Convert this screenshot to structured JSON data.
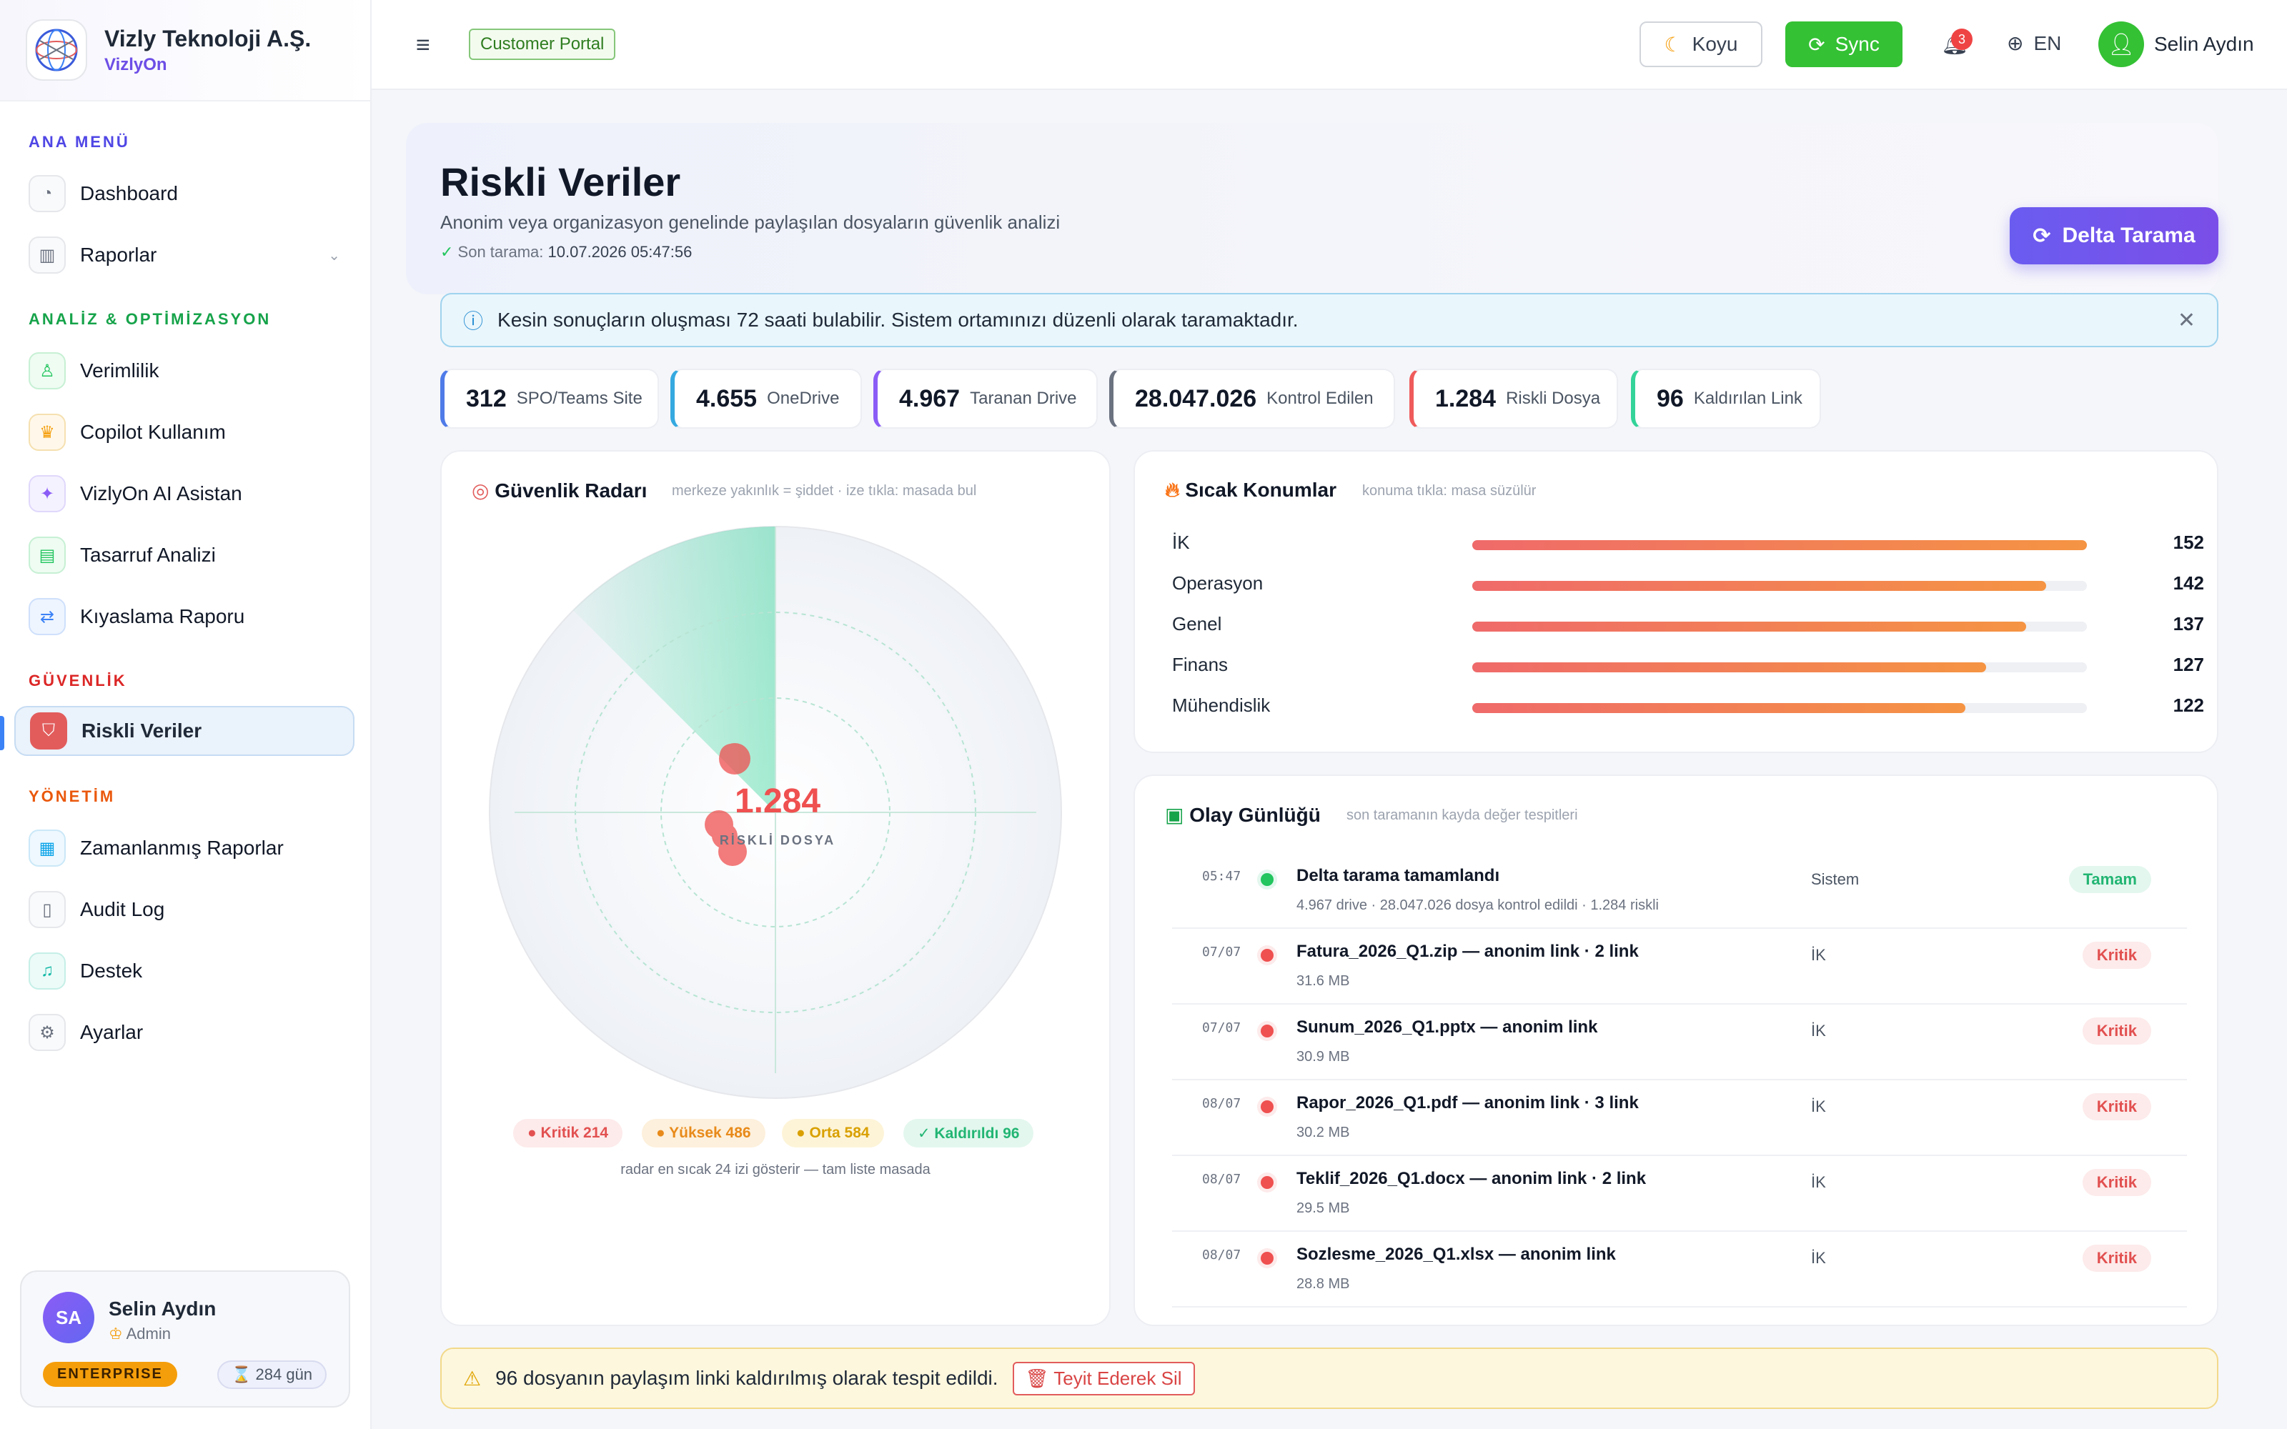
{
  "brand": {
    "name": "Vizly Teknoloji A.Ş.",
    "product": "VizlyOn"
  },
  "sidebar": {
    "sections": [
      "ANA MENÜ",
      "ANALİZ & OPTİMİZASYON",
      "GÜVENLİK",
      "YÖNETİM"
    ],
    "items": [
      {
        "label": "Dashboard",
        "icon": "dashboard-icon"
      },
      {
        "label": "Raporlar",
        "icon": "chart-icon"
      },
      {
        "label": "Verimlilik",
        "icon": "efficiency-icon"
      },
      {
        "label": "Copilot Kullanım",
        "icon": "copilot-icon"
      },
      {
        "label": "VizlyOn AI Asistan",
        "icon": "sparkle-icon"
      },
      {
        "label": "Tasarruf Analizi",
        "icon": "savings-icon"
      },
      {
        "label": "Kıyaslama Raporu",
        "icon": "compare-icon"
      },
      {
        "label": "Riskli Veriler",
        "icon": "shield-icon"
      },
      {
        "label": "Zamanlanmış Raporlar",
        "icon": "calendar-icon"
      },
      {
        "label": "Audit Log",
        "icon": "document-icon"
      },
      {
        "label": "Destek",
        "icon": "headset-icon"
      },
      {
        "label": "Ayarlar",
        "icon": "gear-icon"
      }
    ]
  },
  "user_card": {
    "initials": "SA",
    "name": "Selin Aydın",
    "role": "Admin",
    "plan": "ENTERPRISE",
    "days": "284 gün"
  },
  "topbar": {
    "portal": "Customer Portal",
    "theme": "Koyu",
    "sync": "Sync",
    "notifications": "3",
    "lang": "EN",
    "user": "Selin Aydın"
  },
  "page": {
    "title": "Riskli Veriler",
    "subtitle": "Anonim veya organizasyon genelinde paylaşılan dosyaların güvenlik analizi",
    "last_scan_label": "Son tarama:",
    "last_scan_value": "10.07.2026 05:47:56",
    "action": "Delta Tarama"
  },
  "info": "Kesin sonuçların oluşması 72 saati bulabilir. Sistem ortamınızı düzenli olarak taramaktadır.",
  "stats": [
    {
      "value": "312",
      "label": "SPO/Teams Site",
      "color": "#4f7be8"
    },
    {
      "value": "4.655",
      "label": "OneDrive",
      "color": "#35a9e0"
    },
    {
      "value": "4.967",
      "label": "Taranan Drive",
      "color": "#8b5cf6"
    },
    {
      "value": "28.047.026",
      "label": "Kontrol Edilen",
      "color": "#6b7280"
    },
    {
      "value": "1.284",
      "label": "Riskli Dosya",
      "color": "#ef5b5b"
    },
    {
      "value": "96",
      "label": "Kaldırılan Link",
      "color": "#34d399"
    }
  ],
  "radar": {
    "title": "Güvenlik Radarı",
    "hint": "merkeze yakınlık = şiddet · ize tıkla: masada bul",
    "center_value": "1.284",
    "center_label": "RİSKLİ DOSYA",
    "footer": "radar en sıcak 24 izi gösterir — tam liste masada"
  },
  "severity": [
    {
      "label": "● Kritik 214",
      "bg": "#fdeaea",
      "fg": "#e25050"
    },
    {
      "label": "● Yüksek 486",
      "bg": "#fdf0dc",
      "fg": "#e88a1a"
    },
    {
      "label": "● Orta 584",
      "bg": "#fdf4d8",
      "fg": "#d9a000"
    },
    {
      "label": "✓ Kaldırıldı 96",
      "bg": "#e3f7ee",
      "fg": "#22b573"
    }
  ],
  "hotspots": {
    "title": "Sıcak Konumlar",
    "hint": "konuma tıkla: masa süzülür",
    "max": 152,
    "rows": [
      {
        "name": "İK",
        "count": 152
      },
      {
        "name": "Operasyon",
        "count": 142
      },
      {
        "name": "Genel",
        "count": 137
      },
      {
        "name": "Finans",
        "count": 127
      },
      {
        "name": "Mühendislik",
        "count": 122
      }
    ]
  },
  "events": {
    "title": "Olay Günlüğü",
    "hint": "son taramanın kayda değer tespitleri",
    "rows": [
      {
        "time": "05:47",
        "title": "Delta tarama tamamlandı",
        "sub": "4.967 drive · 28.047.026 dosya kontrol edildi · 1.284 riskli",
        "source": "Sistem",
        "badge": "Tamam",
        "kind": "ok"
      },
      {
        "time": "07/07",
        "title": "Fatura_2026_Q1.zip — anonim link · 2 link",
        "sub": "31.6 MB",
        "source": "İK",
        "badge": "Kritik",
        "kind": "crit"
      },
      {
        "time": "07/07",
        "title": "Sunum_2026_Q1.pptx — anonim link",
        "sub": "30.9 MB",
        "source": "İK",
        "badge": "Kritik",
        "kind": "crit"
      },
      {
        "time": "08/07",
        "title": "Rapor_2026_Q1.pdf — anonim link · 3 link",
        "sub": "30.2 MB",
        "source": "İK",
        "badge": "Kritik",
        "kind": "crit"
      },
      {
        "time": "08/07",
        "title": "Teklif_2026_Q1.docx — anonim link · 2 link",
        "sub": "29.5 MB",
        "source": "İK",
        "badge": "Kritik",
        "kind": "crit"
      },
      {
        "time": "08/07",
        "title": "Sozlesme_2026_Q1.xlsx — anonim link",
        "sub": "28.8 MB",
        "source": "İK",
        "badge": "Kritik",
        "kind": "crit"
      }
    ]
  },
  "warning": {
    "text": "96 dosyanın paylaşım linki kaldırılmış olarak tespit edildi.",
    "action": "🗑 Teyit Ederek Sil"
  }
}
